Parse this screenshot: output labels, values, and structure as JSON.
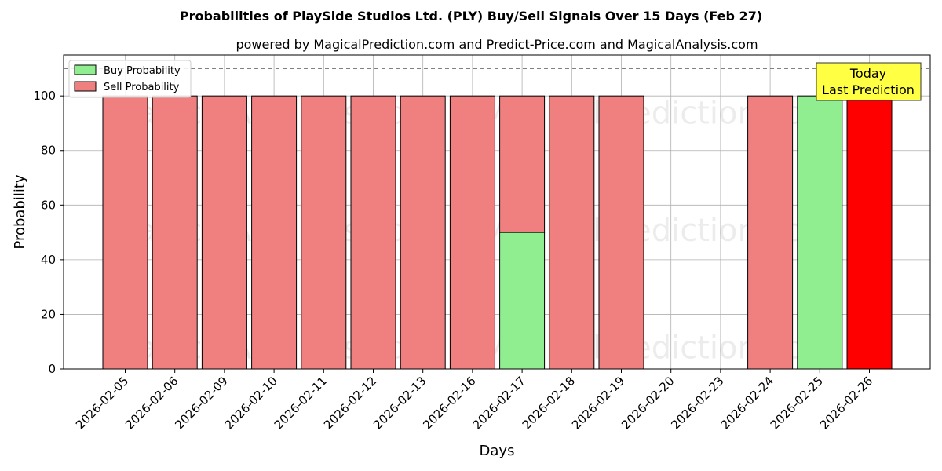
{
  "chart_data": {
    "type": "bar",
    "title": "Probabilities of PlaySide Studios Ltd. (PLY) Buy/Sell Signals Over 15 Days (Feb 27)",
    "subtitle": "powered by MagicalPrediction.com and Predict-Price.com and MagicalAnalysis.com",
    "xlabel": "Days",
    "ylabel": "Probability",
    "ylim": [
      0,
      115
    ],
    "yticks": [
      0,
      20,
      40,
      60,
      80,
      100
    ],
    "grid": true,
    "legend_position": "top-left",
    "reference_line": 110,
    "categories": [
      "2026-02-05",
      "2026-02-06",
      "2026-02-09",
      "2026-02-10",
      "2026-02-11",
      "2026-02-12",
      "2026-02-13",
      "2026-02-16",
      "2026-02-17",
      "2026-02-18",
      "2026-02-19",
      "2026-02-20",
      "2026-02-23",
      "2026-02-24",
      "2026-02-25",
      "2026-02-26"
    ],
    "series": [
      {
        "name": "Buy Probability",
        "color": "#90ee90",
        "values": [
          0,
          0,
          0,
          0,
          0,
          0,
          0,
          0,
          50,
          0,
          0,
          0,
          0,
          0,
          100,
          0
        ]
      },
      {
        "name": "Sell Probability",
        "color": "#f08080",
        "values": [
          100,
          100,
          100,
          100,
          100,
          100,
          100,
          100,
          50,
          100,
          100,
          0,
          0,
          100,
          0,
          100
        ]
      }
    ],
    "highlight": {
      "category": "2026-02-26",
      "color": "#ff0000"
    },
    "annotation": {
      "lines": [
        "Today",
        "Last Prediction"
      ],
      "color": "#ffff44"
    },
    "watermarks": [
      "MagicalAnalysis.com",
      "MagicalPrediction.com"
    ]
  }
}
